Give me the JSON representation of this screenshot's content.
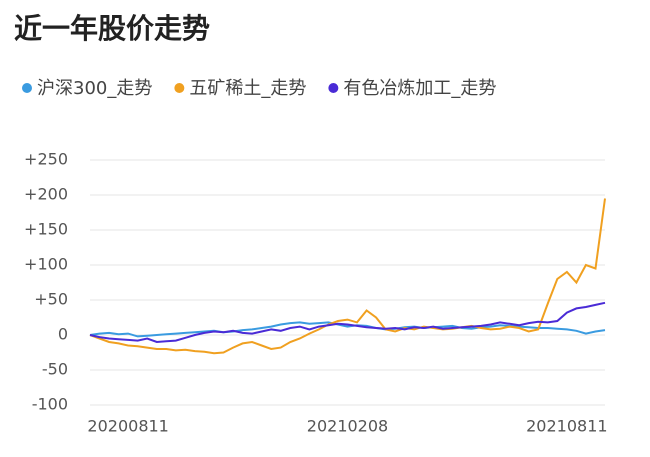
{
  "chart_data": {
    "type": "line",
    "title": "近一年股价走势",
    "categories": [
      null,
      null,
      null,
      null,
      "20200811",
      null,
      null,
      null,
      null,
      null,
      null,
      null,
      null,
      null,
      null,
      null,
      null,
      null,
      null,
      null,
      null,
      null,
      null,
      null,
      null,
      null,
      null,
      "20210208",
      null,
      null,
      null,
      null,
      null,
      null,
      null,
      null,
      null,
      null,
      null,
      null,
      null,
      null,
      null,
      null,
      null,
      null,
      null,
      null,
      null,
      null,
      "20210811",
      null,
      null,
      null,
      null
    ],
    "series": [
      {
        "name": "沪深300_走势",
        "color": "#3a9be0",
        "values": [
          0,
          2,
          3,
          1,
          2,
          -2,
          -1,
          0,
          1,
          2,
          3,
          4,
          5,
          6,
          4,
          5,
          7,
          8,
          10,
          12,
          15,
          17,
          18,
          16,
          17,
          18,
          15,
          12,
          14,
          13,
          10,
          8,
          9,
          11,
          12,
          10,
          11,
          12,
          13,
          10,
          9,
          11,
          12,
          14,
          13,
          12,
          11,
          10,
          10,
          9,
          8,
          6,
          2,
          5,
          7
        ]
      },
      {
        "name": "五矿稀土_走势",
        "color": "#f0a020",
        "values": [
          0,
          -5,
          -10,
          -12,
          -15,
          -16,
          -18,
          -20,
          -20,
          -22,
          -21,
          -23,
          -24,
          -26,
          -25,
          -18,
          -12,
          -10,
          -15,
          -20,
          -18,
          -10,
          -5,
          2,
          8,
          15,
          20,
          22,
          18,
          35,
          25,
          8,
          5,
          10,
          8,
          12,
          10,
          8,
          9,
          11,
          13,
          10,
          8,
          9,
          12,
          10,
          5,
          8,
          45,
          80,
          90,
          75,
          100,
          95,
          195
        ]
      },
      {
        "name": "有色冶炼加工_走势",
        "color": "#4a2bd6",
        "values": [
          0,
          -3,
          -5,
          -6,
          -7,
          -8,
          -5,
          -10,
          -9,
          -8,
          -4,
          0,
          3,
          5,
          4,
          6,
          3,
          2,
          5,
          8,
          6,
          10,
          12,
          8,
          12,
          14,
          16,
          15,
          13,
          11,
          10,
          9,
          10,
          8,
          11,
          10,
          12,
          9,
          10,
          11,
          12,
          13,
          15,
          18,
          16,
          14,
          17,
          19,
          18,
          20,
          32,
          38,
          40,
          43,
          46
        ]
      }
    ],
    "ylim": [
      -100,
      250
    ],
    "yticks": [
      -100,
      -50,
      0,
      {
        "value": 50,
        "label": "+50"
      },
      {
        "value": 100,
        "label": "+100"
      },
      {
        "value": 150,
        "label": "+150"
      },
      {
        "value": 200,
        "label": "+200"
      },
      {
        "value": 250,
        "label": "+250"
      }
    ],
    "grid": true
  }
}
